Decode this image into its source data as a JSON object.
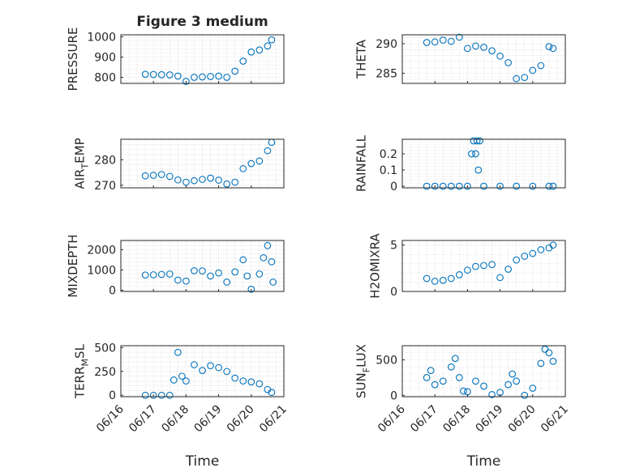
{
  "chart_data": [
    {
      "type": "scatter",
      "title": "Figure 3 medium",
      "ylabel": "PRESSURE",
      "ylim": [
        770,
        1010
      ],
      "yticks": [
        800,
        900,
        1000
      ],
      "ytick_labels": [
        "800",
        "900",
        "1000"
      ],
      "xlim": [
        "06/16",
        "06/21"
      ],
      "marker_color": "#0072bd",
      "series": [
        {
          "points": [
            [
              "06/16 18:00",
              815
            ],
            [
              "06/17 00:00",
              814
            ],
            [
              "06/17 06:00",
              813
            ],
            [
              "06/17 12:00",
              812
            ],
            [
              "06/17 18:00",
              806
            ],
            [
              "06/18 00:00",
              780
            ],
            [
              "06/18 06:00",
              800
            ],
            [
              "06/18 12:00",
              802
            ],
            [
              "06/18 18:00",
              804
            ],
            [
              "06/19 00:00",
              806
            ],
            [
              "06/19 06:00",
              800
            ],
            [
              "06/19 12:00",
              830
            ],
            [
              "06/19 18:00",
              880
            ],
            [
              "06/20 00:00",
              925
            ],
            [
              "06/20 06:00",
              935
            ],
            [
              "06/20 12:00",
              955
            ],
            [
              "06/20 15:00",
              985
            ]
          ]
        }
      ]
    },
    {
      "type": "scatter",
      "title": "",
      "ylabel": "THETA",
      "ylim": [
        283.3,
        291.5
      ],
      "yticks": [
        285,
        290
      ],
      "ytick_labels": [
        "285",
        "290"
      ],
      "xlim": [
        "06/16",
        "06/21"
      ],
      "marker_color": "#0072bd",
      "series": [
        {
          "points": [
            [
              "06/16 18:00",
              290.2
            ],
            [
              "06/17 00:00",
              290.3
            ],
            [
              "06/17 06:00",
              290.6
            ],
            [
              "06/17 12:00",
              290.4
            ],
            [
              "06/17 18:00",
              291.1
            ],
            [
              "06/18 00:00",
              289.2
            ],
            [
              "06/18 06:00",
              289.6
            ],
            [
              "06/18 12:00",
              289.4
            ],
            [
              "06/18 18:00",
              288.8
            ],
            [
              "06/19 00:00",
              287.9
            ],
            [
              "06/19 06:00",
              286.8
            ],
            [
              "06/19 12:00",
              284.1
            ],
            [
              "06/19 18:00",
              284.3
            ],
            [
              "06/20 00:00",
              285.5
            ],
            [
              "06/20 06:00",
              286.3
            ],
            [
              "06/20 12:00",
              289.5
            ],
            [
              "06/20 15:00",
              289.2
            ]
          ]
        }
      ]
    },
    {
      "type": "scatter",
      "title": "",
      "ylabel": "AIR_TEMP",
      "ylabel_main": "AIR",
      "ylabel_sub": "T",
      "ylabel_rest": "EMP",
      "ylim": [
        269,
        288
      ],
      "yticks": [
        270,
        280
      ],
      "ytick_labels": [
        "270",
        "280"
      ],
      "xlim": [
        "06/16",
        "06/21"
      ],
      "marker_color": "#0072bd",
      "series": [
        {
          "points": [
            [
              "06/16 18:00",
              273.7
            ],
            [
              "06/17 00:00",
              273.9
            ],
            [
              "06/17 06:00",
              274.2
            ],
            [
              "06/17 12:00",
              273.5
            ],
            [
              "06/17 18:00",
              272.1
            ],
            [
              "06/18 00:00",
              271.2
            ],
            [
              "06/18 06:00",
              271.8
            ],
            [
              "06/18 12:00",
              272.3
            ],
            [
              "06/18 18:00",
              272.8
            ],
            [
              "06/19 00:00",
              272.0
            ],
            [
              "06/19 06:00",
              270.5
            ],
            [
              "06/19 12:00",
              271.2
            ],
            [
              "06/19 18:00",
              276.5
            ],
            [
              "06/20 00:00",
              278.5
            ],
            [
              "06/20 06:00",
              279.5
            ],
            [
              "06/20 12:00",
              283.5
            ],
            [
              "06/20 15:00",
              286.8
            ]
          ]
        }
      ]
    },
    {
      "type": "scatter",
      "title": "",
      "ylabel": "RAINFALL",
      "ylim": [
        -0.01,
        0.29
      ],
      "yticks": [
        0,
        0.1,
        0.2
      ],
      "ytick_labels": [
        "0",
        "0.1",
        "0.2"
      ],
      "xlim": [
        "06/16",
        "06/21"
      ],
      "marker_color": "#0072bd",
      "series": [
        {
          "points": [
            [
              "06/16 18:00",
              0
            ],
            [
              "06/17 00:00",
              0
            ],
            [
              "06/17 06:00",
              0
            ],
            [
              "06/17 12:00",
              0
            ],
            [
              "06/17 18:00",
              0
            ],
            [
              "06/18 00:00",
              0
            ],
            [
              "06/18 03:00",
              0.2
            ],
            [
              "06/18 04:30",
              0.28
            ],
            [
              "06/18 06:00",
              0.2
            ],
            [
              "06/18 07:00",
              0.28
            ],
            [
              "06/18 08:00",
              0.1
            ],
            [
              "06/18 09:00",
              0.28
            ],
            [
              "06/18 12:00",
              0
            ],
            [
              "06/19 00:00",
              0
            ],
            [
              "06/19 12:00",
              0
            ],
            [
              "06/20 00:00",
              0
            ],
            [
              "06/20 12:00",
              0
            ],
            [
              "06/20 15:00",
              0
            ]
          ]
        }
      ]
    },
    {
      "type": "scatter",
      "title": "",
      "ylabel": "MIXDEPTH",
      "ylim": [
        -60,
        2450
      ],
      "yticks": [
        0,
        1000,
        2000
      ],
      "ytick_labels": [
        "0",
        "1000",
        "2000"
      ],
      "xlim": [
        "06/16",
        "06/21"
      ],
      "marker_color": "#0072bd",
      "series": [
        {
          "points": [
            [
              "06/16 18:00",
              750
            ],
            [
              "06/17 00:00",
              760
            ],
            [
              "06/17 06:00",
              780
            ],
            [
              "06/17 12:00",
              800
            ],
            [
              "06/17 18:00",
              500
            ],
            [
              "06/18 00:00",
              450
            ],
            [
              "06/18 06:00",
              960
            ],
            [
              "06/18 12:00",
              950
            ],
            [
              "06/18 18:00",
              700
            ],
            [
              "06/19 00:00",
              850
            ],
            [
              "06/19 06:00",
              400
            ],
            [
              "06/19 12:00",
              900
            ],
            [
              "06/19 18:00",
              1500
            ],
            [
              "06/19 21:00",
              700
            ],
            [
              "06/20 00:00",
              50
            ],
            [
              "06/20 06:00",
              800
            ],
            [
              "06/20 09:00",
              1600
            ],
            [
              "06/20 12:00",
              2200
            ],
            [
              "06/20 15:00",
              1400
            ],
            [
              "06/20 16:00",
              400
            ]
          ]
        }
      ]
    },
    {
      "type": "scatter",
      "title": "",
      "ylabel": "H2OMIXRA",
      "ylim": [
        0,
        5.5
      ],
      "yticks": [
        0,
        5
      ],
      "ytick_labels": [
        "0",
        "5"
      ],
      "xlim": [
        "06/16",
        "06/21"
      ],
      "marker_color": "#0072bd",
      "series": [
        {
          "points": [
            [
              "06/16 18:00",
              1.4
            ],
            [
              "06/17 00:00",
              1.1
            ],
            [
              "06/17 06:00",
              1.2
            ],
            [
              "06/17 12:00",
              1.4
            ],
            [
              "06/17 18:00",
              1.8
            ],
            [
              "06/18 00:00",
              2.3
            ],
            [
              "06/18 06:00",
              2.7
            ],
            [
              "06/18 12:00",
              2.8
            ],
            [
              "06/18 18:00",
              2.9
            ],
            [
              "06/19 00:00",
              1.5
            ],
            [
              "06/19 06:00",
              2.4
            ],
            [
              "06/19 12:00",
              3.4
            ],
            [
              "06/19 18:00",
              3.8
            ],
            [
              "06/20 00:00",
              4.1
            ],
            [
              "06/20 06:00",
              4.5
            ],
            [
              "06/20 12:00",
              4.7
            ],
            [
              "06/20 15:00",
              5.0
            ]
          ]
        }
      ]
    },
    {
      "type": "scatter",
      "title": "",
      "ylabel": "TERR_MSL",
      "ylabel_main": "TERR",
      "ylabel_sub": "M",
      "ylabel_rest": "SL",
      "ylim": [
        -15,
        520
      ],
      "yticks": [
        0,
        250,
        500
      ],
      "ytick_labels": [
        "0",
        "250",
        "500"
      ],
      "xlim": [
        "06/16",
        "06/21"
      ],
      "marker_color": "#0072bd",
      "series": [
        {
          "points": [
            [
              "06/16 18:00",
              0
            ],
            [
              "06/17 00:00",
              0
            ],
            [
              "06/17 06:00",
              0
            ],
            [
              "06/17 12:00",
              0
            ],
            [
              "06/17 15:00",
              160
            ],
            [
              "06/17 18:00",
              450
            ],
            [
              "06/17 21:00",
              200
            ],
            [
              "06/18 00:00",
              150
            ],
            [
              "06/18 06:00",
              320
            ],
            [
              "06/18 12:00",
              260
            ],
            [
              "06/18 18:00",
              310
            ],
            [
              "06/19 00:00",
              290
            ],
            [
              "06/19 06:00",
              250
            ],
            [
              "06/19 12:00",
              180
            ],
            [
              "06/19 18:00",
              150
            ],
            [
              "06/20 00:00",
              140
            ],
            [
              "06/20 06:00",
              120
            ],
            [
              "06/20 12:00",
              60
            ],
            [
              "06/20 15:00",
              30
            ]
          ]
        }
      ]
    },
    {
      "type": "scatter",
      "title": "",
      "ylabel": "SUN_FLUX",
      "ylabel_main": "SUN",
      "ylabel_sub": "F",
      "ylabel_rest": "LUX",
      "ylim": [
        -20,
        700
      ],
      "yticks": [
        0,
        500
      ],
      "ytick_labels": [
        "0",
        "500"
      ],
      "xlim": [
        "06/16",
        "06/21"
      ],
      "marker_color": "#0072bd",
      "series": [
        {
          "points": [
            [
              "06/16 18:00",
              250
            ],
            [
              "06/16 21:00",
              350
            ],
            [
              "06/17 00:00",
              150
            ],
            [
              "06/17 06:00",
              200
            ],
            [
              "06/17 12:00",
              400
            ],
            [
              "06/17 15:00",
              520
            ],
            [
              "06/17 18:00",
              250
            ],
            [
              "06/17 21:00",
              60
            ],
            [
              "06/18 00:00",
              50
            ],
            [
              "06/18 06:00",
              200
            ],
            [
              "06/18 12:00",
              130
            ],
            [
              "06/18 18:00",
              10
            ],
            [
              "06/19 00:00",
              40
            ],
            [
              "06/19 06:00",
              150
            ],
            [
              "06/19 09:00",
              300
            ],
            [
              "06/19 12:00",
              200
            ],
            [
              "06/19 18:00",
              0
            ],
            [
              "06/20 00:00",
              100
            ],
            [
              "06/20 06:00",
              450
            ],
            [
              "06/20 09:00",
              650
            ],
            [
              "06/20 12:00",
              600
            ],
            [
              "06/20 15:00",
              480
            ]
          ]
        }
      ]
    }
  ],
  "x_axis": {
    "tick_labels": [
      "06/16",
      "06/17",
      "06/18",
      "06/19",
      "06/20",
      "06/21"
    ],
    "label": "Time"
  }
}
